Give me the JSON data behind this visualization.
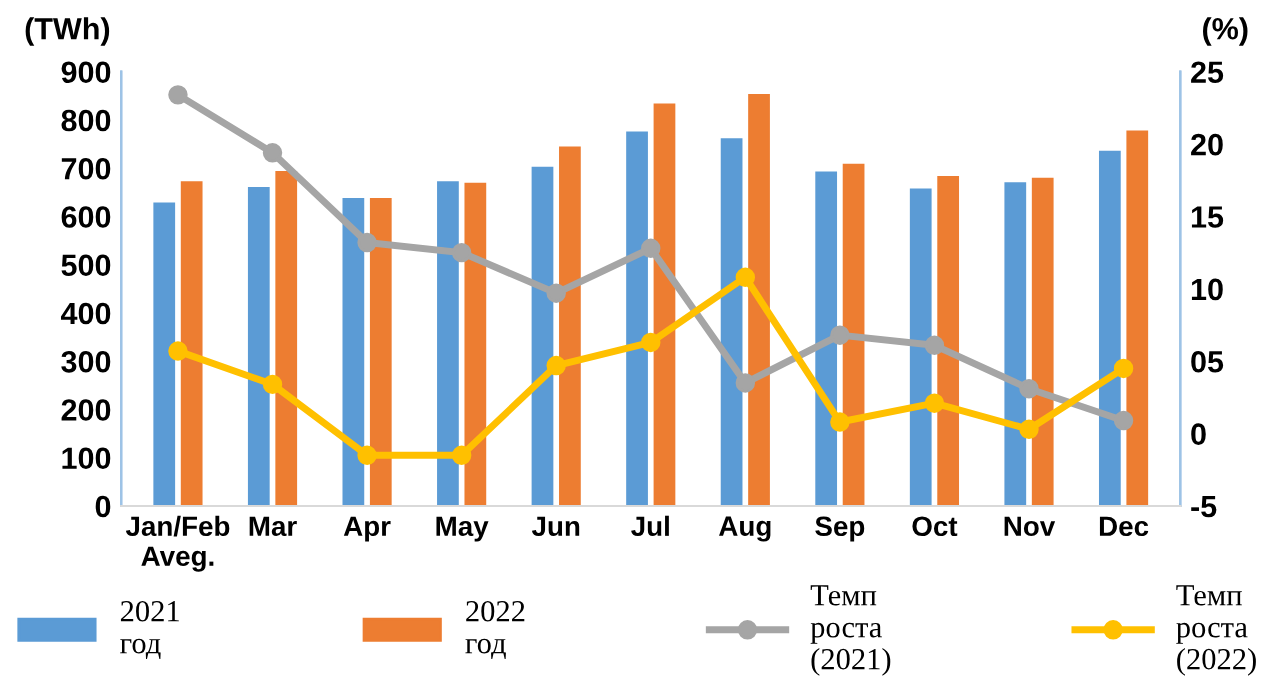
{
  "chart_data": {
    "type": "bar",
    "ylabel": "(TWh)",
    "y2label": "(%)",
    "categories": [
      "Jan/Feb\nAveg.",
      "Mar",
      "Apr",
      "May",
      "Jun",
      "Jul",
      "Aug",
      "Sep",
      "Oct",
      "Nov",
      "Dec"
    ],
    "series": [
      {
        "name": "2021\nгод",
        "color": "#5b9bd5",
        "values": [
          629,
          661,
          638,
          673,
          703,
          776,
          762,
          693,
          658,
          671,
          736
        ]
      },
      {
        "name": "2022\nгод",
        "color": "#ed7d31",
        "values": [
          673,
          694,
          638,
          670,
          745,
          834,
          854,
          709,
          684,
          680,
          778
        ]
      },
      {
        "name": "Темп\nроста\n(2021)",
        "type": "line",
        "axis": "y2",
        "color": "#a5a5a5",
        "values": [
          23.4,
          19.4,
          13.2,
          12.5,
          9.7,
          12.8,
          3.5,
          6.8,
          6.1,
          3.1,
          0.9
        ]
      },
      {
        "name": "Темп\nроста\n(2022)",
        "type": "line",
        "axis": "y2",
        "color": "#ffc000",
        "values": [
          5.7,
          3.4,
          -1.5,
          -1.5,
          4.7,
          6.3,
          10.8,
          0.8,
          2.1,
          0.3,
          4.5
        ]
      }
    ],
    "ylim": [
      0,
      900
    ],
    "yticks": [
      0,
      100,
      200,
      300,
      400,
      500,
      600,
      700,
      800,
      900
    ],
    "y2lim": [
      -5,
      25
    ],
    "y2ticks": [
      -5,
      0,
      {
        "value": 5,
        "label": "05"
      },
      10,
      15,
      20,
      25
    ],
    "marker": "circle",
    "grid": false,
    "legend": "bottom"
  }
}
